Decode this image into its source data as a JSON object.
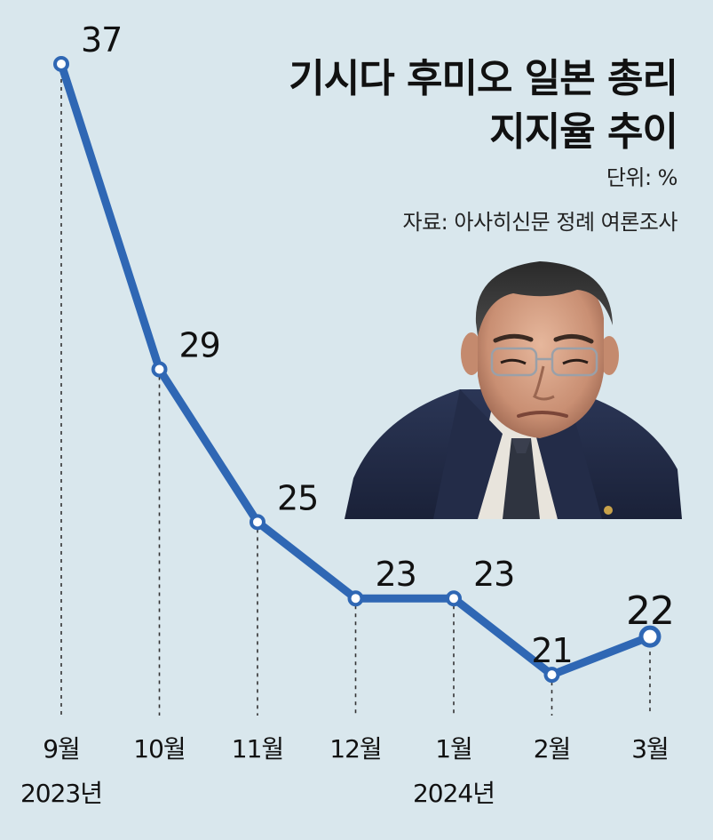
{
  "title": {
    "line1": "기시다 후미오 일본 총리",
    "line2": "지지율 추이"
  },
  "unit_label": "단위: %",
  "source_label": "자료: 아사히신문 정례 여론조사",
  "colors": {
    "background": "#d9e7ed",
    "line": "#2f67b4",
    "text": "#111111"
  },
  "photo": {
    "icon": "politician-portrait-photo"
  },
  "chart_data": {
    "type": "line",
    "title": "기시다 후미오 일본 총리 지지율 추이",
    "unit": "%",
    "categories": [
      "9월",
      "10월",
      "11월",
      "12월",
      "1월",
      "2월",
      "3월"
    ],
    "year_labels": [
      {
        "category": "9월",
        "label": "2023년"
      },
      {
        "category": "1월",
        "label": "2024년"
      }
    ],
    "series": [
      {
        "values": [
          37,
          29,
          25,
          23,
          23,
          21,
          22
        ],
        "labels": [
          "37",
          "29",
          "25",
          "23",
          "23",
          "21",
          "22"
        ]
      }
    ],
    "ylim": [
      19,
      38
    ],
    "grid": false,
    "highlight_last": true
  }
}
